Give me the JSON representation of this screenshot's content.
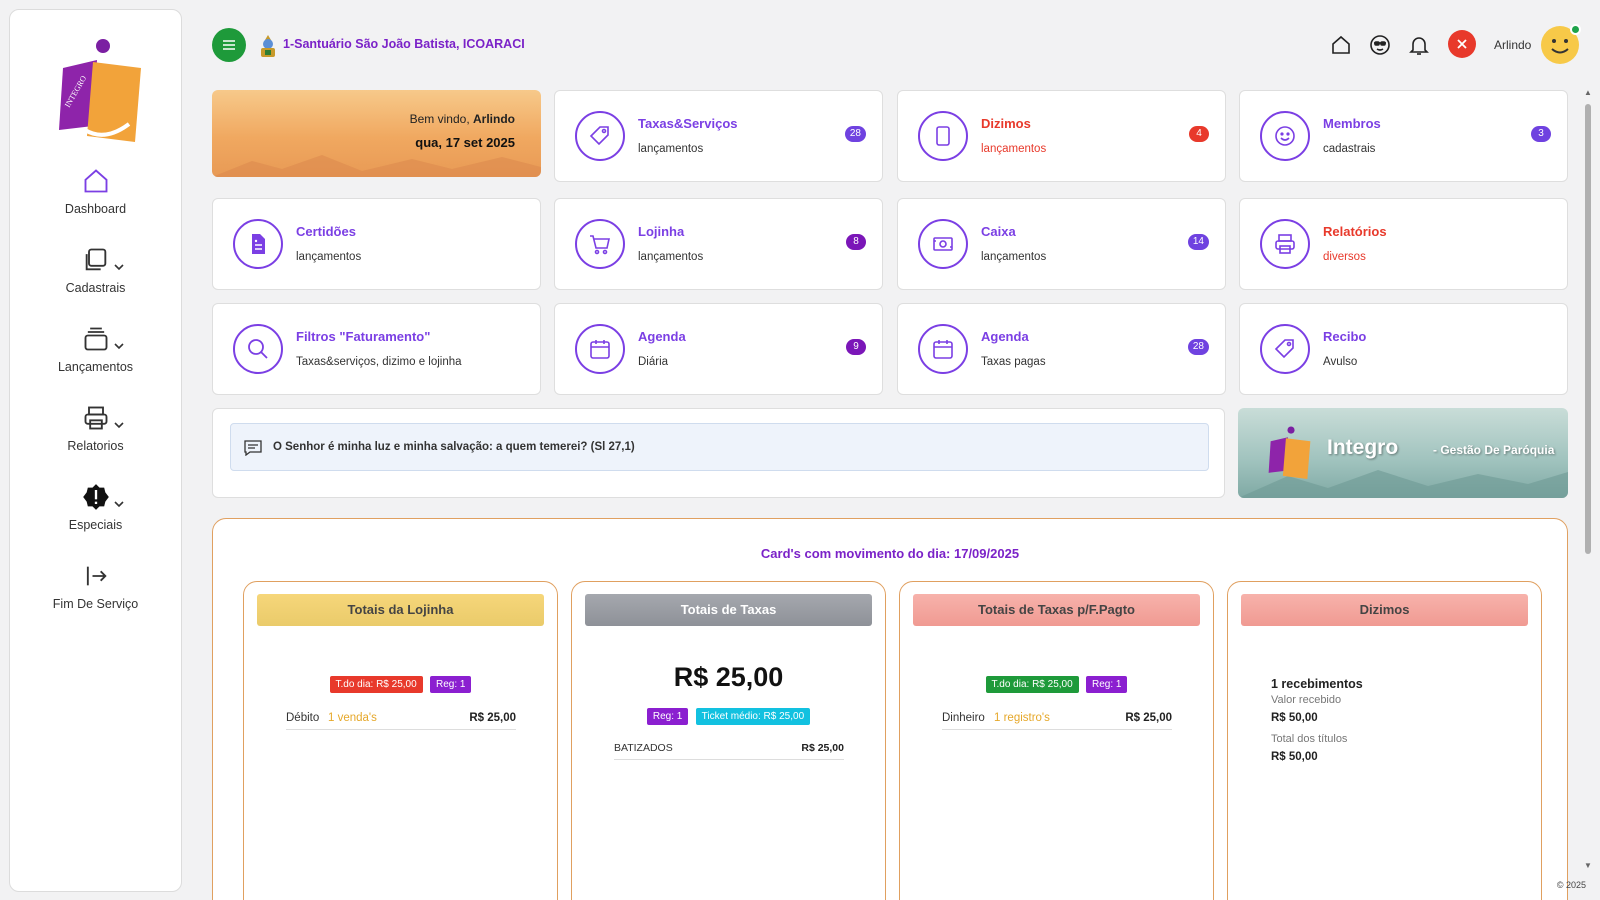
{
  "sidebar": {
    "items": [
      {
        "label": "Dashboard",
        "icon": "home-icon"
      },
      {
        "label": "Cadastrais",
        "icon": "copy-icon"
      },
      {
        "label": "Lançamentos",
        "icon": "stack-icon"
      },
      {
        "label": "Relatorios",
        "icon": "printer-icon"
      },
      {
        "label": "Especiais",
        "icon": "alert-badge-icon"
      },
      {
        "label": "Fim De Serviço",
        "icon": "logout-icon"
      }
    ]
  },
  "header": {
    "church_name": "1-Santuário São João Batista, ICOARACI",
    "user_name": "Arlindo"
  },
  "welcome": {
    "greeting_prefix": "Bem vindo,",
    "greeting_name": "Arlindo",
    "date": "qua, 17 set 2025"
  },
  "cards": [
    {
      "title": "Taxas&Serviços",
      "subtitle": "lançamentos",
      "badge": "28",
      "icon": "tag-icon"
    },
    {
      "title": "Dizimos",
      "subtitle": "lançamentos",
      "badge": "4",
      "icon": "tablet-icon",
      "badge_color": "#e8392b"
    },
    {
      "title": "Membros",
      "subtitle": "cadastrais",
      "badge": "3",
      "icon": "smile-icon"
    },
    {
      "title": "Certidões",
      "subtitle": "lançamentos",
      "badge": "",
      "icon": "document-icon"
    },
    {
      "title": "Lojinha",
      "subtitle": "lançamentos",
      "badge": "8",
      "icon": "cart-icon",
      "badge_color": "#7b16b8"
    },
    {
      "title": "Caixa",
      "subtitle": "lançamentos",
      "badge": "14",
      "icon": "cash-icon"
    },
    {
      "title": "Relatórios",
      "subtitle": "diversos",
      "badge": "",
      "icon": "printer-icon"
    },
    {
      "title": "Filtros \"Faturamento\"",
      "subtitle": "Taxas&serviços, dizimo e lojinha",
      "badge": "",
      "icon": "search-icon"
    },
    {
      "title": "Agenda",
      "subtitle": "Diária",
      "badge": "9",
      "icon": "calendar-icon",
      "badge_color": "#7b16b8"
    },
    {
      "title": "Agenda",
      "subtitle": "Taxas pagas",
      "badge": "28",
      "icon": "calendar-icon"
    },
    {
      "title": "Recibo",
      "subtitle": "Avulso",
      "badge": "",
      "icon": "tag-icon"
    }
  ],
  "verse": "O Senhor é minha luz e minha salvação: a quem temerei? (Sl 27,1)",
  "banner": {
    "title": "Integro",
    "subtitle": "- Gestão De Paróquia"
  },
  "movement": {
    "title": "Card's com movimento do dia: 17/09/2025",
    "lojinha": {
      "header": "Totais da Lojinha",
      "total_pill": "T.do dia: R$ 25,00",
      "reg_pill": "Reg: 1",
      "row_label": "Débito",
      "row_meta": "1 venda's",
      "row_value": "R$ 25,00"
    },
    "taxas": {
      "header": "Totais de Taxas",
      "big_total": "R$ 25,00",
      "reg_pill": "Reg: 1",
      "ticket_pill": "Ticket médio: R$ 25,00",
      "row_label": "BATIZADOS",
      "row_value": "R$ 25,00"
    },
    "taxas_fpagto": {
      "header": "Totais de Taxas p/F.Pagto",
      "total_pill": "T.do dia: R$ 25,00",
      "reg_pill": "Reg: 1",
      "row_label": "Dinheiro",
      "row_meta": "1 registro's",
      "row_value": "R$ 25,00"
    },
    "dizimos": {
      "header": "Dizimos",
      "count": "1 recebimentos",
      "received_label": "Valor recebido",
      "received_value": "R$ 50,00",
      "titles_label": "Total dos títulos",
      "titles_value": "R$ 50,00"
    }
  },
  "footer": "© 2025",
  "colors": {
    "accent": "#7b3fe4",
    "brand_purple": "#7b22c8",
    "menu_green": "#1e9a3a",
    "danger": "#e8392b"
  }
}
